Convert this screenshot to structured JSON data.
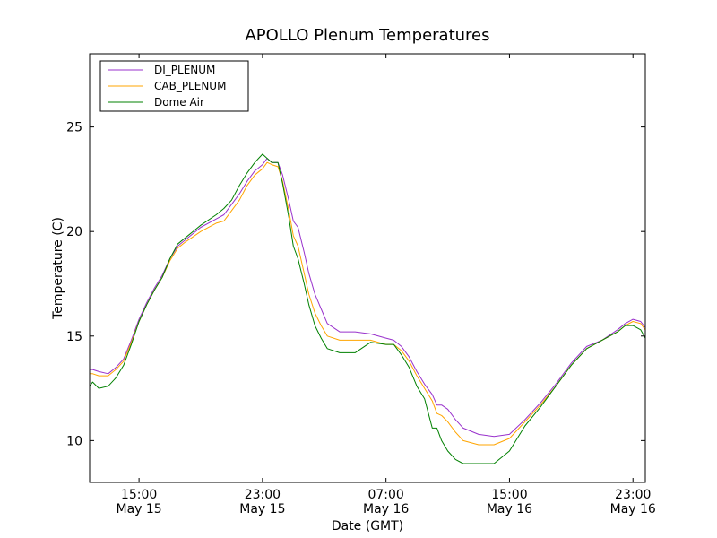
{
  "chart_data": {
    "type": "line",
    "title": "APOLLO Plenum Temperatures",
    "xlabel": "Date (GMT)",
    "ylabel": "Temperature (C)",
    "x_unit": "hours since May 15 00:00 GMT",
    "xlim": [
      11.8,
      47.8
    ],
    "ylim": [
      8,
      28.5
    ],
    "grid": false,
    "legend_position": "top-left",
    "x_ticks": [
      {
        "value": 15,
        "time": "15:00",
        "date": "May 15"
      },
      {
        "value": 23,
        "time": "23:00",
        "date": "May 15"
      },
      {
        "value": 31,
        "time": "07:00",
        "date": "May 16"
      },
      {
        "value": 39,
        "time": "15:00",
        "date": "May 16"
      },
      {
        "value": 47,
        "time": "23:00",
        "date": "May 16"
      }
    ],
    "y_ticks": [
      10,
      15,
      20,
      25
    ],
    "series": [
      {
        "name": "DI_PLENUM",
        "color": "#9932cc",
        "x": [
          11.8,
          12.0,
          12.4,
          13.0,
          13.5,
          14.0,
          14.5,
          15.0,
          15.5,
          16.0,
          16.5,
          17.0,
          17.5,
          18.0,
          19.0,
          20.0,
          20.5,
          21.0,
          21.5,
          22.0,
          22.5,
          23.0,
          23.3,
          23.6,
          24.0,
          24.3,
          24.7,
          25.0,
          25.3,
          25.7,
          26.0,
          26.4,
          26.8,
          27.2,
          28.0,
          29.0,
          30.0,
          31.0,
          31.5,
          32.0,
          32.5,
          33.0,
          33.5,
          34.0,
          34.3,
          34.6,
          35.0,
          35.5,
          36.0,
          37.0,
          38.0,
          39.0,
          40.0,
          41.0,
          42.0,
          43.0,
          44.0,
          45.0,
          46.0,
          46.5,
          47.0,
          47.5,
          47.8
        ],
        "y": [
          13.4,
          13.4,
          13.3,
          13.2,
          13.5,
          13.9,
          14.8,
          15.8,
          16.6,
          17.3,
          17.9,
          18.7,
          19.3,
          19.6,
          20.2,
          20.6,
          20.8,
          21.3,
          21.8,
          22.4,
          22.9,
          23.2,
          23.5,
          23.3,
          23.3,
          22.7,
          21.5,
          20.5,
          20.2,
          19.0,
          18.0,
          17.0,
          16.3,
          15.6,
          15.2,
          15.2,
          15.1,
          14.9,
          14.8,
          14.5,
          14.0,
          13.3,
          12.7,
          12.2,
          11.7,
          11.7,
          11.5,
          11.0,
          10.6,
          10.3,
          10.2,
          10.3,
          11.0,
          11.8,
          12.7,
          13.7,
          14.5,
          14.8,
          15.3,
          15.6,
          15.8,
          15.7,
          15.4
        ]
      },
      {
        "name": "CAB_PLENUM",
        "color": "#ffa500",
        "x": [
          11.8,
          12.0,
          12.4,
          13.0,
          13.5,
          14.0,
          14.5,
          15.0,
          15.5,
          16.0,
          16.5,
          17.0,
          17.5,
          18.0,
          19.0,
          20.0,
          20.5,
          21.0,
          21.5,
          22.0,
          22.5,
          23.0,
          23.3,
          23.6,
          24.0,
          24.3,
          24.7,
          25.0,
          25.3,
          25.7,
          26.0,
          26.4,
          26.8,
          27.2,
          28.0,
          29.0,
          30.0,
          31.0,
          31.5,
          32.0,
          32.5,
          33.0,
          33.5,
          34.0,
          34.3,
          34.6,
          35.0,
          35.5,
          36.0,
          37.0,
          38.0,
          39.0,
          40.0,
          41.0,
          42.0,
          43.0,
          44.0,
          45.0,
          46.0,
          46.5,
          47.0,
          47.5,
          47.8
        ],
        "y": [
          13.2,
          13.2,
          13.1,
          13.1,
          13.4,
          13.8,
          14.7,
          15.7,
          16.5,
          17.2,
          17.8,
          18.6,
          19.2,
          19.5,
          20.0,
          20.4,
          20.5,
          21.0,
          21.5,
          22.2,
          22.7,
          23.0,
          23.3,
          23.2,
          23.1,
          22.4,
          21.0,
          19.8,
          19.3,
          18.0,
          17.0,
          16.1,
          15.5,
          15.0,
          14.8,
          14.8,
          14.8,
          14.6,
          14.6,
          14.3,
          13.8,
          13.1,
          12.5,
          11.9,
          11.3,
          11.2,
          10.9,
          10.4,
          10.0,
          9.8,
          9.8,
          10.1,
          10.9,
          11.7,
          12.6,
          13.6,
          14.4,
          14.8,
          15.2,
          15.5,
          15.7,
          15.6,
          15.3
        ]
      },
      {
        "name": "Dome Air",
        "color": "#008000",
        "x": [
          11.8,
          12.0,
          12.4,
          13.0,
          13.5,
          14.0,
          14.5,
          15.0,
          15.5,
          16.0,
          16.5,
          17.0,
          17.5,
          18.0,
          19.0,
          20.0,
          20.5,
          21.0,
          21.5,
          22.0,
          22.5,
          23.0,
          23.3,
          23.6,
          24.0,
          24.3,
          24.7,
          25.0,
          25.3,
          25.7,
          26.0,
          26.4,
          26.8,
          27.2,
          28.0,
          29.0,
          30.0,
          31.0,
          31.5,
          32.0,
          32.5,
          33.0,
          33.5,
          34.0,
          34.3,
          34.6,
          35.0,
          35.5,
          36.0,
          37.0,
          38.0,
          39.0,
          40.0,
          41.0,
          42.0,
          43.0,
          44.0,
          45.0,
          46.0,
          46.5,
          47.0,
          47.5,
          47.8
        ],
        "y": [
          12.6,
          12.8,
          12.5,
          12.6,
          13.0,
          13.6,
          14.6,
          15.7,
          16.5,
          17.2,
          17.8,
          18.7,
          19.4,
          19.7,
          20.3,
          20.8,
          21.1,
          21.5,
          22.2,
          22.8,
          23.3,
          23.7,
          23.5,
          23.3,
          23.3,
          22.3,
          20.7,
          19.3,
          18.7,
          17.5,
          16.5,
          15.5,
          14.9,
          14.4,
          14.2,
          14.2,
          14.7,
          14.6,
          14.6,
          14.1,
          13.5,
          12.6,
          12.0,
          10.6,
          10.6,
          10.0,
          9.5,
          9.1,
          8.9,
          8.9,
          8.9,
          9.5,
          10.7,
          11.6,
          12.6,
          13.6,
          14.4,
          14.8,
          15.2,
          15.5,
          15.5,
          15.3,
          14.9
        ]
      }
    ]
  }
}
